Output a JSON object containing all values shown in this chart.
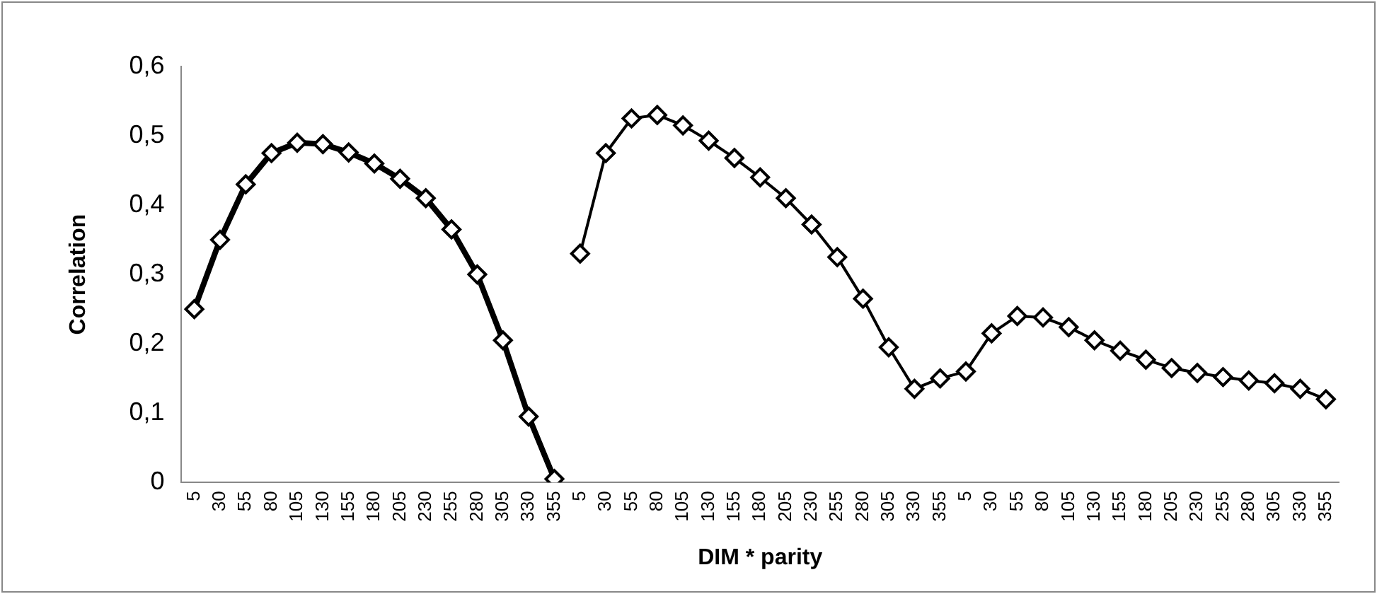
{
  "chart_data": {
    "type": "line",
    "xlabel": "DIM * parity",
    "ylabel": "Correlation",
    "categories": [
      "5",
      "30",
      "55",
      "80",
      "105",
      "130",
      "155",
      "180",
      "205",
      "230",
      "255",
      "280",
      "305",
      "330",
      "355",
      "5",
      "30",
      "55",
      "80",
      "105",
      "130",
      "155",
      "180",
      "205",
      "230",
      "255",
      "280",
      "305",
      "330",
      "355",
      "5",
      "30",
      "55",
      "80",
      "105",
      "130",
      "155",
      "180",
      "205",
      "230",
      "255",
      "280",
      "305",
      "330",
      "355"
    ],
    "series": [
      {
        "color": "#000000",
        "values": [
          0.25,
          0.35,
          0.43,
          0.475,
          0.49,
          0.488,
          0.476,
          0.46,
          0.438,
          0.41,
          0.365,
          0.3,
          0.205,
          0.095,
          0.005,
          null,
          null,
          null,
          null,
          null,
          null,
          null,
          null,
          null,
          null,
          null,
          null,
          null,
          null,
          null,
          null,
          null,
          null,
          null,
          null,
          null,
          null,
          null,
          null,
          null,
          null,
          null,
          null,
          null,
          null
        ]
      },
      {
        "color": "#000000",
        "values": [
          null,
          null,
          null,
          null,
          null,
          null,
          null,
          null,
          null,
          null,
          null,
          null,
          null,
          null,
          null,
          0.33,
          0.475,
          0.525,
          0.53,
          0.515,
          0.493,
          0.468,
          0.44,
          0.41,
          0.372,
          0.325,
          0.265,
          0.195,
          0.135,
          0.15,
          0.16,
          0.215,
          0.24,
          0.238,
          0.224,
          0.205,
          0.19,
          0.177,
          0.165,
          0.158,
          0.152,
          0.147,
          0.143,
          0.135,
          0.12
        ]
      }
    ],
    "ylim": [
      0,
      0.6
    ],
    "yticks": [
      0,
      {
        "value": 0.1,
        "label": "0,1"
      },
      {
        "value": 0.2,
        "label": "0,2"
      },
      {
        "value": 0.3,
        "label": "0,3"
      },
      {
        "value": 0.4,
        "label": "0,4"
      },
      {
        "value": 0.5,
        "label": "0,5"
      },
      {
        "value": 0.6,
        "label": "0,6"
      }
    ],
    "grid": false,
    "legend": false,
    "marker": "diamond",
    "line_style": "solid"
  }
}
